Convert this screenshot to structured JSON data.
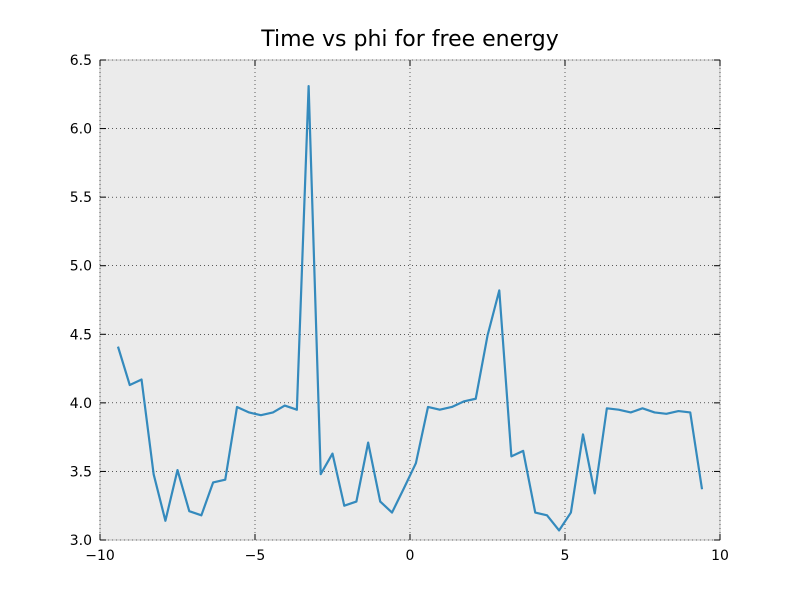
{
  "chart_data": {
    "type": "line",
    "title": "Time vs phi for free energy",
    "x": [
      -9.42,
      -9.04,
      -8.66,
      -8.27,
      -7.89,
      -7.5,
      -7.12,
      -6.73,
      -6.35,
      -5.96,
      -5.58,
      -5.19,
      -4.81,
      -4.42,
      -4.04,
      -3.65,
      -3.27,
      -2.88,
      -2.5,
      -2.12,
      -1.73,
      -1.35,
      -0.96,
      -0.58,
      -0.19,
      0.19,
      0.58,
      0.96,
      1.35,
      1.73,
      2.12,
      2.5,
      2.88,
      3.27,
      3.65,
      4.04,
      4.42,
      4.81,
      5.19,
      5.58,
      5.96,
      6.35,
      6.73,
      7.12,
      7.5,
      7.89,
      8.27,
      8.66,
      9.04,
      9.42
    ],
    "series": [
      {
        "color": "#348abd",
        "values": [
          4.41,
          4.13,
          4.17,
          3.48,
          3.14,
          3.51,
          3.21,
          3.18,
          3.42,
          3.44,
          3.97,
          3.93,
          3.91,
          3.93,
          3.98,
          3.95,
          6.31,
          3.48,
          3.63,
          3.25,
          3.28,
          3.71,
          3.28,
          3.2,
          3.38,
          3.56,
          3.97,
          3.95,
          3.97,
          4.01,
          4.03,
          4.49,
          4.82,
          3.61,
          3.65,
          3.2,
          3.18,
          3.07,
          3.2,
          3.77,
          3.34,
          3.96,
          3.95,
          3.93,
          3.96,
          3.93,
          3.92,
          3.94,
          3.93,
          3.37
        ]
      }
    ],
    "xlim": [
      -10,
      10
    ],
    "xticks": [
      {
        "value": -10,
        "label": "−10"
      },
      {
        "value": -5,
        "label": "−5"
      },
      0,
      5,
      10
    ],
    "ylim": [
      3.0,
      6.5
    ],
    "yticks": [
      {
        "value": 3,
        "label": "3.0"
      },
      3.5,
      {
        "value": 4,
        "label": "4.0"
      },
      4.5,
      {
        "value": 5,
        "label": "5.0"
      },
      5.5,
      {
        "value": 6,
        "label": "6.0"
      },
      6.5
    ],
    "grid": true
  }
}
